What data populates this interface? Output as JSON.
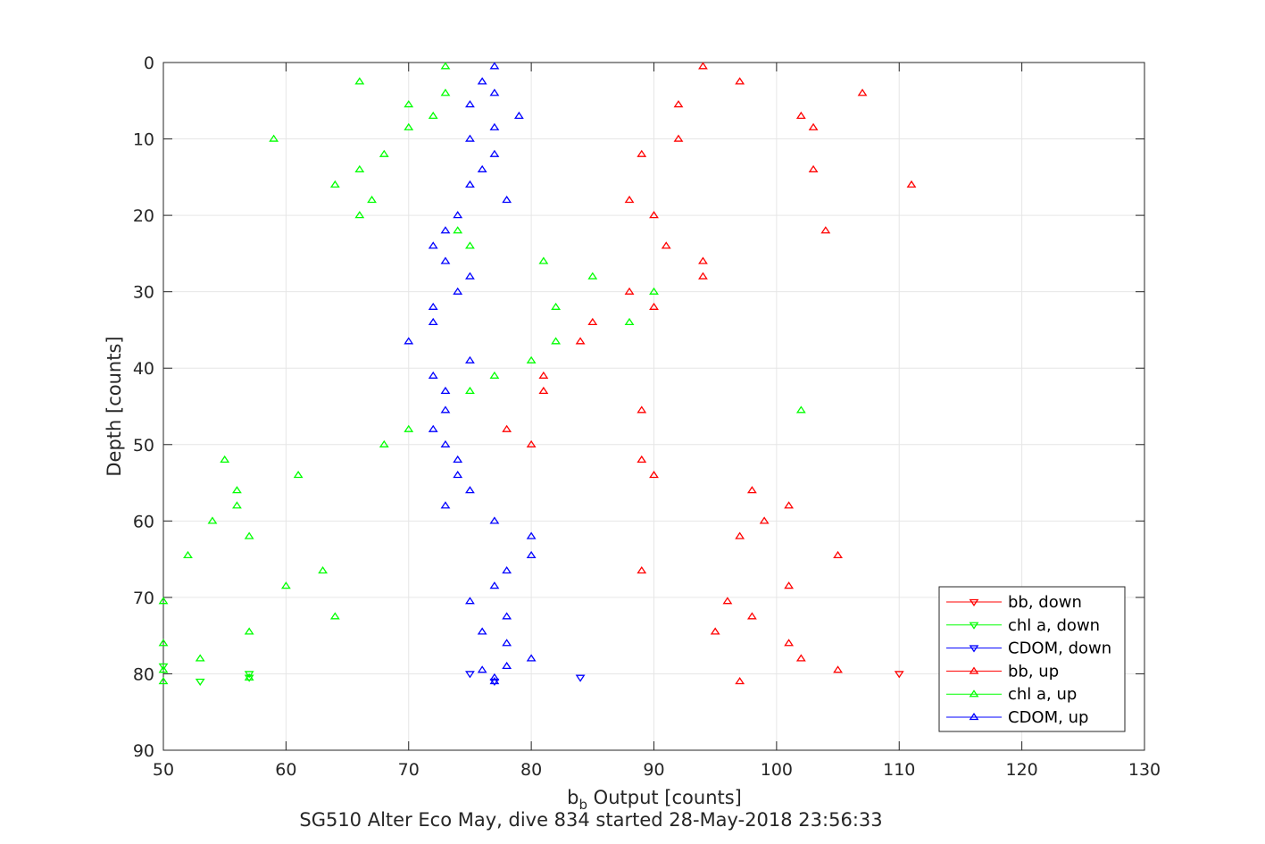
{
  "chart_data": {
    "type": "scatter",
    "title": "",
    "xlabel_main": "b",
    "xlabel_sub": "b",
    "xlabel_rest": " Output [counts]",
    "ylabel": "Depth [counts]",
    "caption": "SG510 Alter Eco May, dive 834 started 28-May-2018 23:56:33",
    "xlim": [
      50,
      130
    ],
    "ylim": [
      0,
      90
    ],
    "y_reversed": true,
    "xticks": [
      "50",
      "60",
      "70",
      "80",
      "90",
      "100",
      "110",
      "120",
      "130"
    ],
    "yticks": [
      "0",
      "10",
      "20",
      "30",
      "40",
      "50",
      "60",
      "70",
      "80",
      "90"
    ],
    "grid": true,
    "legend_position": "bottom-right",
    "series": [
      {
        "name": "bb, down",
        "color": "#ff0000",
        "marker": "triangle-down",
        "points": [
          [
            110,
            80
          ]
        ]
      },
      {
        "name": "chl a, down",
        "color": "#00ff00",
        "marker": "triangle-down",
        "points": [
          [
            50,
            79
          ],
          [
            53,
            81
          ],
          [
            57,
            80
          ],
          [
            57,
            80.5
          ]
        ]
      },
      {
        "name": "CDOM, down",
        "color": "#0000ff",
        "marker": "triangle-down",
        "points": [
          [
            75,
            80
          ],
          [
            77,
            81
          ],
          [
            84,
            80.5
          ]
        ]
      },
      {
        "name": "bb, up",
        "color": "#ff0000",
        "marker": "triangle-up",
        "points": [
          [
            94,
            0.5
          ],
          [
            97,
            2.5
          ],
          [
            107,
            4
          ],
          [
            92,
            5.5
          ],
          [
            102,
            7
          ],
          [
            103,
            8.5
          ],
          [
            92,
            10
          ],
          [
            89,
            12
          ],
          [
            103,
            14
          ],
          [
            111,
            16
          ],
          [
            88,
            18
          ],
          [
            90,
            20
          ],
          [
            104,
            22
          ],
          [
            91,
            24
          ],
          [
            94,
            26
          ],
          [
            94,
            28
          ],
          [
            88,
            30
          ],
          [
            90,
            32
          ],
          [
            85,
            34
          ],
          [
            84,
            36.5
          ],
          [
            81,
            41
          ],
          [
            81,
            43
          ],
          [
            89,
            45.5
          ],
          [
            78,
            48
          ],
          [
            80,
            50
          ],
          [
            89,
            52
          ],
          [
            90,
            54
          ],
          [
            98,
            56
          ],
          [
            101,
            58
          ],
          [
            99,
            60
          ],
          [
            97,
            62
          ],
          [
            105,
            64.5
          ],
          [
            89,
            66.5
          ],
          [
            101,
            68.5
          ],
          [
            96,
            70.5
          ],
          [
            98,
            72.5
          ],
          [
            95,
            74.5
          ],
          [
            101,
            76
          ],
          [
            102,
            78
          ],
          [
            105,
            79.5
          ],
          [
            97,
            81
          ]
        ]
      },
      {
        "name": "chl a, up",
        "color": "#00ff00",
        "marker": "triangle-up",
        "points": [
          [
            73,
            0.5
          ],
          [
            66,
            2.5
          ],
          [
            73,
            4
          ],
          [
            70,
            5.5
          ],
          [
            72,
            7
          ],
          [
            70,
            8.5
          ],
          [
            59,
            10
          ],
          [
            68,
            12
          ],
          [
            66,
            14
          ],
          [
            64,
            16
          ],
          [
            67,
            18
          ],
          [
            66,
            20
          ],
          [
            74,
            22
          ],
          [
            75,
            24
          ],
          [
            81,
            26
          ],
          [
            85,
            28
          ],
          [
            90,
            30
          ],
          [
            82,
            32
          ],
          [
            88,
            34
          ],
          [
            82,
            36.5
          ],
          [
            80,
            39
          ],
          [
            77,
            41
          ],
          [
            75,
            43
          ],
          [
            102,
            45.5
          ],
          [
            70,
            48
          ],
          [
            68,
            50
          ],
          [
            55,
            52
          ],
          [
            61,
            54
          ],
          [
            56,
            56
          ],
          [
            56,
            58
          ],
          [
            54,
            60
          ],
          [
            57,
            62
          ],
          [
            52,
            64.5
          ],
          [
            63,
            66.5
          ],
          [
            60,
            68.5
          ],
          [
            50,
            70.5
          ],
          [
            64,
            72.5
          ],
          [
            57,
            74.5
          ],
          [
            50,
            76
          ],
          [
            53,
            78
          ],
          [
            50,
            79.5
          ],
          [
            57,
            80.5
          ],
          [
            50,
            81
          ]
        ]
      },
      {
        "name": "CDOM, up",
        "color": "#0000ff",
        "marker": "triangle-up",
        "points": [
          [
            77,
            0.5
          ],
          [
            76,
            2.5
          ],
          [
            77,
            4
          ],
          [
            75,
            5.5
          ],
          [
            79,
            7
          ],
          [
            77,
            8.5
          ],
          [
            75,
            10
          ],
          [
            77,
            12
          ],
          [
            76,
            14
          ],
          [
            75,
            16
          ],
          [
            78,
            18
          ],
          [
            74,
            20
          ],
          [
            73,
            22
          ],
          [
            72,
            24
          ],
          [
            73,
            26
          ],
          [
            75,
            28
          ],
          [
            74,
            30
          ],
          [
            72,
            32
          ],
          [
            72,
            34
          ],
          [
            70,
            36.5
          ],
          [
            75,
            39
          ],
          [
            72,
            41
          ],
          [
            73,
            43
          ],
          [
            73,
            45.5
          ],
          [
            72,
            48
          ],
          [
            73,
            50
          ],
          [
            74,
            52
          ],
          [
            74,
            54
          ],
          [
            75,
            56
          ],
          [
            73,
            58
          ],
          [
            77,
            60
          ],
          [
            80,
            62
          ],
          [
            80,
            64.5
          ],
          [
            78,
            66.5
          ],
          [
            77,
            68.5
          ],
          [
            75,
            70.5
          ],
          [
            78,
            72.5
          ],
          [
            76,
            74.5
          ],
          [
            78,
            76
          ],
          [
            80,
            78
          ],
          [
            78,
            79
          ],
          [
            76,
            79.5
          ],
          [
            77,
            80.5
          ],
          [
            77,
            81
          ]
        ]
      }
    ]
  }
}
